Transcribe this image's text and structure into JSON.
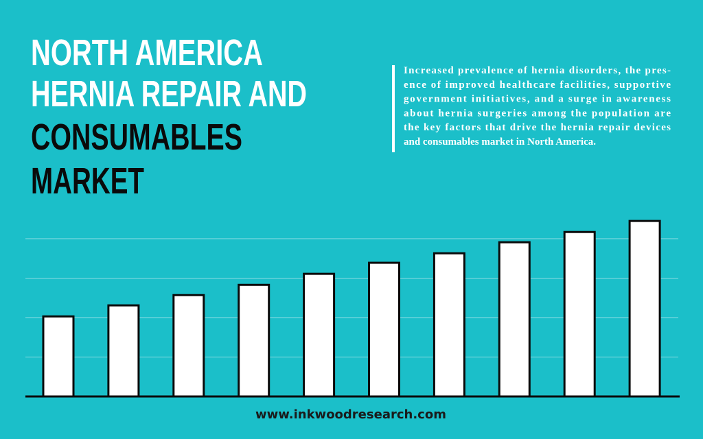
{
  "chart_data": {
    "type": "bar",
    "title": [
      "NORTH AMERICA",
      "HERNIA REPAIR AND",
      "CONSUMABLES",
      "MARKET"
    ],
    "subtitle": [
      "Increased prevalence of hernia disorders, the pres-",
      "ence of improved healthcare facilities, supportive",
      "government initiatives, and a surge in awareness",
      "about hernia surgeries among the population are",
      "the key factors that drive the hernia repair devices",
      "and consumables market in North America."
    ],
    "source": "www.inkwoodresearch.com",
    "values": [
      2.03,
      2.31,
      2.57,
      2.83,
      3.11,
      3.39,
      3.63,
      3.91,
      4.17,
      4.45
    ],
    "color": "#ffffff",
    "ylim": [
      0,
      5
    ],
    "yticks": [
      0,
      1,
      2,
      3,
      4
    ],
    "grid": true
  }
}
